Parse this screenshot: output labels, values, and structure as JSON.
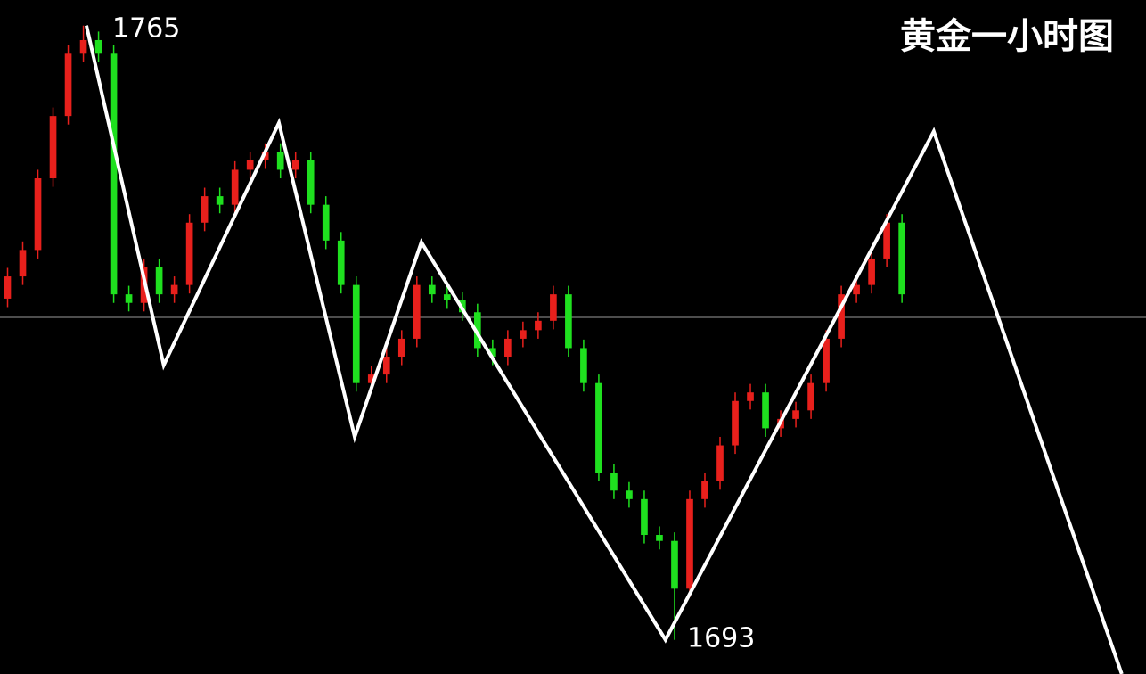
{
  "chart_data": {
    "type": "candlestick",
    "title": "黄金一小时图",
    "annotations": [
      "1765",
      "1693"
    ],
    "up_color": "#e8201c",
    "down_color": "#1fe01f",
    "line_color": "#ffffff",
    "hline_color": "#9a9a9a",
    "ylim": [
      1689,
      1768
    ],
    "xlim": [
      -0.5,
      75.1
    ],
    "hline": 1730.8,
    "open": [
      1733.0,
      1735.6,
      1738.7,
      1747.1,
      1754.4,
      1761.7,
      1763.3,
      1761.7,
      1733.5,
      1732.5,
      1736.7,
      1733.5,
      1734.6,
      1741.9,
      1745.0,
      1744.0,
      1748.1,
      1749.2,
      1750.2,
      1748.1,
      1749.2,
      1744.0,
      1739.8,
      1734.6,
      1723.1,
      1724.1,
      1726.2,
      1728.3,
      1734.6,
      1733.5,
      1732.8,
      1731.4,
      1727.2,
      1726.2,
      1728.3,
      1729.3,
      1730.4,
      1733.5,
      1727.2,
      1723.1,
      1712.6,
      1710.5,
      1709.5,
      1705.3,
      1704.6,
      1699.0,
      1709.5,
      1711.6,
      1715.8,
      1721.0,
      1722.0,
      1717.8,
      1718.9,
      1719.9,
      1723.1,
      1728.3,
      1733.5,
      1734.6,
      1737.7,
      1741.9
    ],
    "high": [
      1736.6,
      1739.7,
      1748.1,
      1755.4,
      1762.7,
      1765.0,
      1764.3,
      1762.7,
      1734.5,
      1737.7,
      1737.7,
      1735.6,
      1742.9,
      1746.0,
      1746.0,
      1749.1,
      1750.2,
      1751.2,
      1751.2,
      1750.2,
      1750.2,
      1745.0,
      1740.8,
      1735.6,
      1725.1,
      1727.2,
      1729.3,
      1735.6,
      1735.6,
      1734.5,
      1733.8,
      1732.4,
      1728.2,
      1729.3,
      1730.3,
      1731.4,
      1734.5,
      1734.5,
      1728.2,
      1724.1,
      1713.6,
      1711.5,
      1710.5,
      1706.3,
      1705.6,
      1710.5,
      1712.6,
      1716.8,
      1722.0,
      1723.0,
      1723.0,
      1719.9,
      1720.9,
      1724.1,
      1729.3,
      1734.5,
      1735.6,
      1738.7,
      1742.9,
      1742.9
    ],
    "low": [
      1732.0,
      1734.6,
      1737.7,
      1746.1,
      1753.4,
      1760.7,
      1760.7,
      1732.5,
      1731.5,
      1731.5,
      1732.5,
      1732.5,
      1733.6,
      1740.9,
      1743.0,
      1743.0,
      1747.1,
      1748.2,
      1747.1,
      1747.1,
      1743.0,
      1738.8,
      1733.6,
      1722.1,
      1722.1,
      1723.1,
      1725.2,
      1727.3,
      1732.5,
      1731.8,
      1730.4,
      1726.2,
      1725.2,
      1725.2,
      1727.3,
      1728.3,
      1729.4,
      1726.2,
      1722.1,
      1711.6,
      1709.5,
      1708.5,
      1704.3,
      1703.6,
      1693.0,
      1698.0,
      1708.5,
      1710.6,
      1714.8,
      1720.0,
      1716.8,
      1716.8,
      1717.9,
      1718.9,
      1722.1,
      1727.3,
      1732.5,
      1733.6,
      1736.7,
      1732.5
    ],
    "close": [
      1735.6,
      1738.7,
      1747.1,
      1754.4,
      1761.7,
      1763.3,
      1761.7,
      1733.5,
      1732.5,
      1736.7,
      1733.5,
      1734.6,
      1741.9,
      1745.0,
      1744.0,
      1748.1,
      1749.2,
      1750.2,
      1748.1,
      1749.2,
      1744.0,
      1739.8,
      1734.6,
      1723.1,
      1724.1,
      1726.2,
      1728.3,
      1734.6,
      1733.5,
      1732.8,
      1731.4,
      1727.2,
      1726.2,
      1728.3,
      1729.3,
      1730.4,
      1733.5,
      1727.2,
      1723.1,
      1712.6,
      1710.5,
      1709.5,
      1705.3,
      1704.6,
      1699.0,
      1709.5,
      1711.6,
      1715.8,
      1721.0,
      1722.0,
      1717.8,
      1718.9,
      1719.9,
      1723.1,
      1728.3,
      1733.5,
      1734.6,
      1737.7,
      1741.9,
      1733.5
    ],
    "zigzag": {
      "x": [
        5.2,
        10.3,
        17.9,
        22.9,
        27.3,
        43.4,
        61.1,
        73.5
      ],
      "values": [
        1765,
        1725.2,
        1753.6,
        1716.8,
        1739.6,
        1693,
        1752.6,
        1689
      ]
    }
  }
}
